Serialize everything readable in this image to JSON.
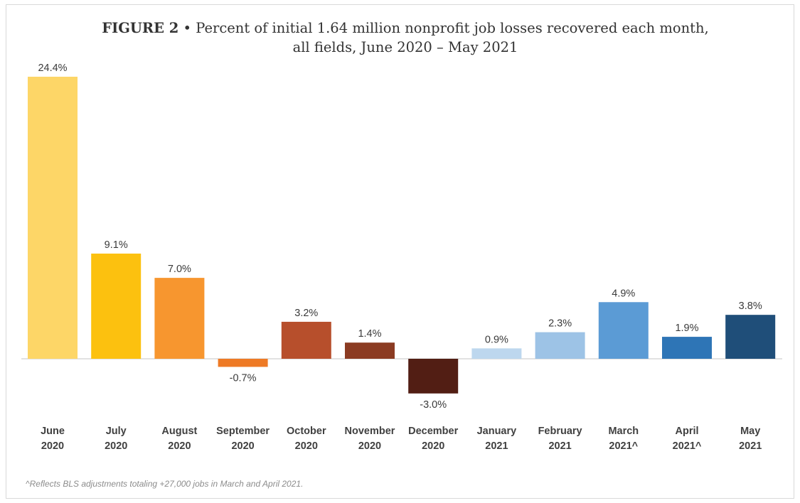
{
  "title": {
    "figure_label": "FIGURE 2",
    "separator": "•",
    "text": "Percent of initial 1.64 million nonprofit job losses recovered each month, all fields, June 2020 – May 2021"
  },
  "footnote": "^Reflects BLS adjustments totaling +27,000 jobs in March and April 2021.",
  "chart_data": {
    "type": "bar",
    "categories": [
      [
        "June",
        "2020"
      ],
      [
        "July",
        "2020"
      ],
      [
        "August",
        "2020"
      ],
      [
        "September",
        "2020"
      ],
      [
        "October",
        "2020"
      ],
      [
        "November",
        "2020"
      ],
      [
        "December",
        "2020"
      ],
      [
        "January",
        "2021"
      ],
      [
        "February",
        "2021"
      ],
      [
        "March",
        "2021^"
      ],
      [
        "April",
        "2021^"
      ],
      [
        "May",
        "2021"
      ]
    ],
    "values": [
      24.4,
      9.1,
      7.0,
      -0.7,
      3.2,
      1.4,
      -3.0,
      0.9,
      2.3,
      4.9,
      1.9,
      3.8
    ],
    "data_labels": [
      "24.4%",
      "9.1%",
      "7.0%",
      "-0.7%",
      "3.2%",
      "1.4%",
      "-3.0%",
      "0.9%",
      "2.3%",
      "4.9%",
      "1.9%",
      "3.8%"
    ],
    "colors": [
      "#FDD667",
      "#FCC10F",
      "#F7962F",
      "#EE7A25",
      "#B74F2C",
      "#8B3B22",
      "#521E14",
      "#BDD7EE",
      "#9DC3E6",
      "#5B9BD5",
      "#2E75B6",
      "#1F4E79"
    ],
    "axis_line_color": "#d9d9d9",
    "legend": "none",
    "grid": false
  }
}
